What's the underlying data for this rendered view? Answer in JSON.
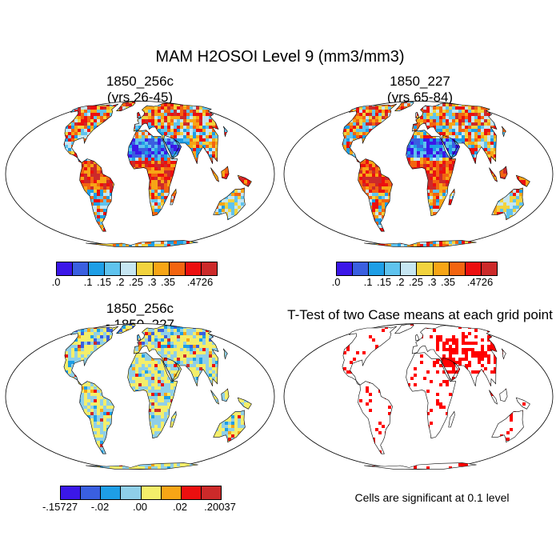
{
  "figure": {
    "title": "MAM H2OSOI Level 9 (mm3/mm3)"
  },
  "panels": [
    {
      "id": "p1",
      "line1": "1850_256c",
      "line2": "(yrs 26-45)",
      "type": "field"
    },
    {
      "id": "p2",
      "line1": "1850_227",
      "line2": "(yrs 65-84)",
      "type": "field"
    },
    {
      "id": "p3",
      "line1": "1850_256c",
      "line2": "- 1850_227",
      "type": "difference"
    },
    {
      "id": "p4",
      "line1": "T-Test of two Case means at each grid point",
      "type": "ttest"
    }
  ],
  "colorbars": {
    "field": {
      "colors": [
        "#3b17e8",
        "#3a5fe0",
        "#1e9ee6",
        "#5fc3ee",
        "#c6e6f2",
        "#f2d33e",
        "#f7a516",
        "#f36410",
        "#ec0f0f",
        "#cc2a2a"
      ],
      "labels": [
        ".0",
        ".1",
        ".15",
        ".2",
        ".25",
        ".3",
        ".35",
        ".4726"
      ]
    },
    "difference": {
      "colors": [
        "#3b17e8",
        "#3a5fe0",
        "#1e9ee6",
        "#8fcfe8",
        "#f4ee6a",
        "#f7a516",
        "#ec0f0f",
        "#cc2a2a"
      ],
      "labels": [
        "-.15727",
        "-.02",
        ".00",
        ".02",
        ".20037"
      ]
    }
  },
  "note": "Cells are significant at 0.1 level"
}
